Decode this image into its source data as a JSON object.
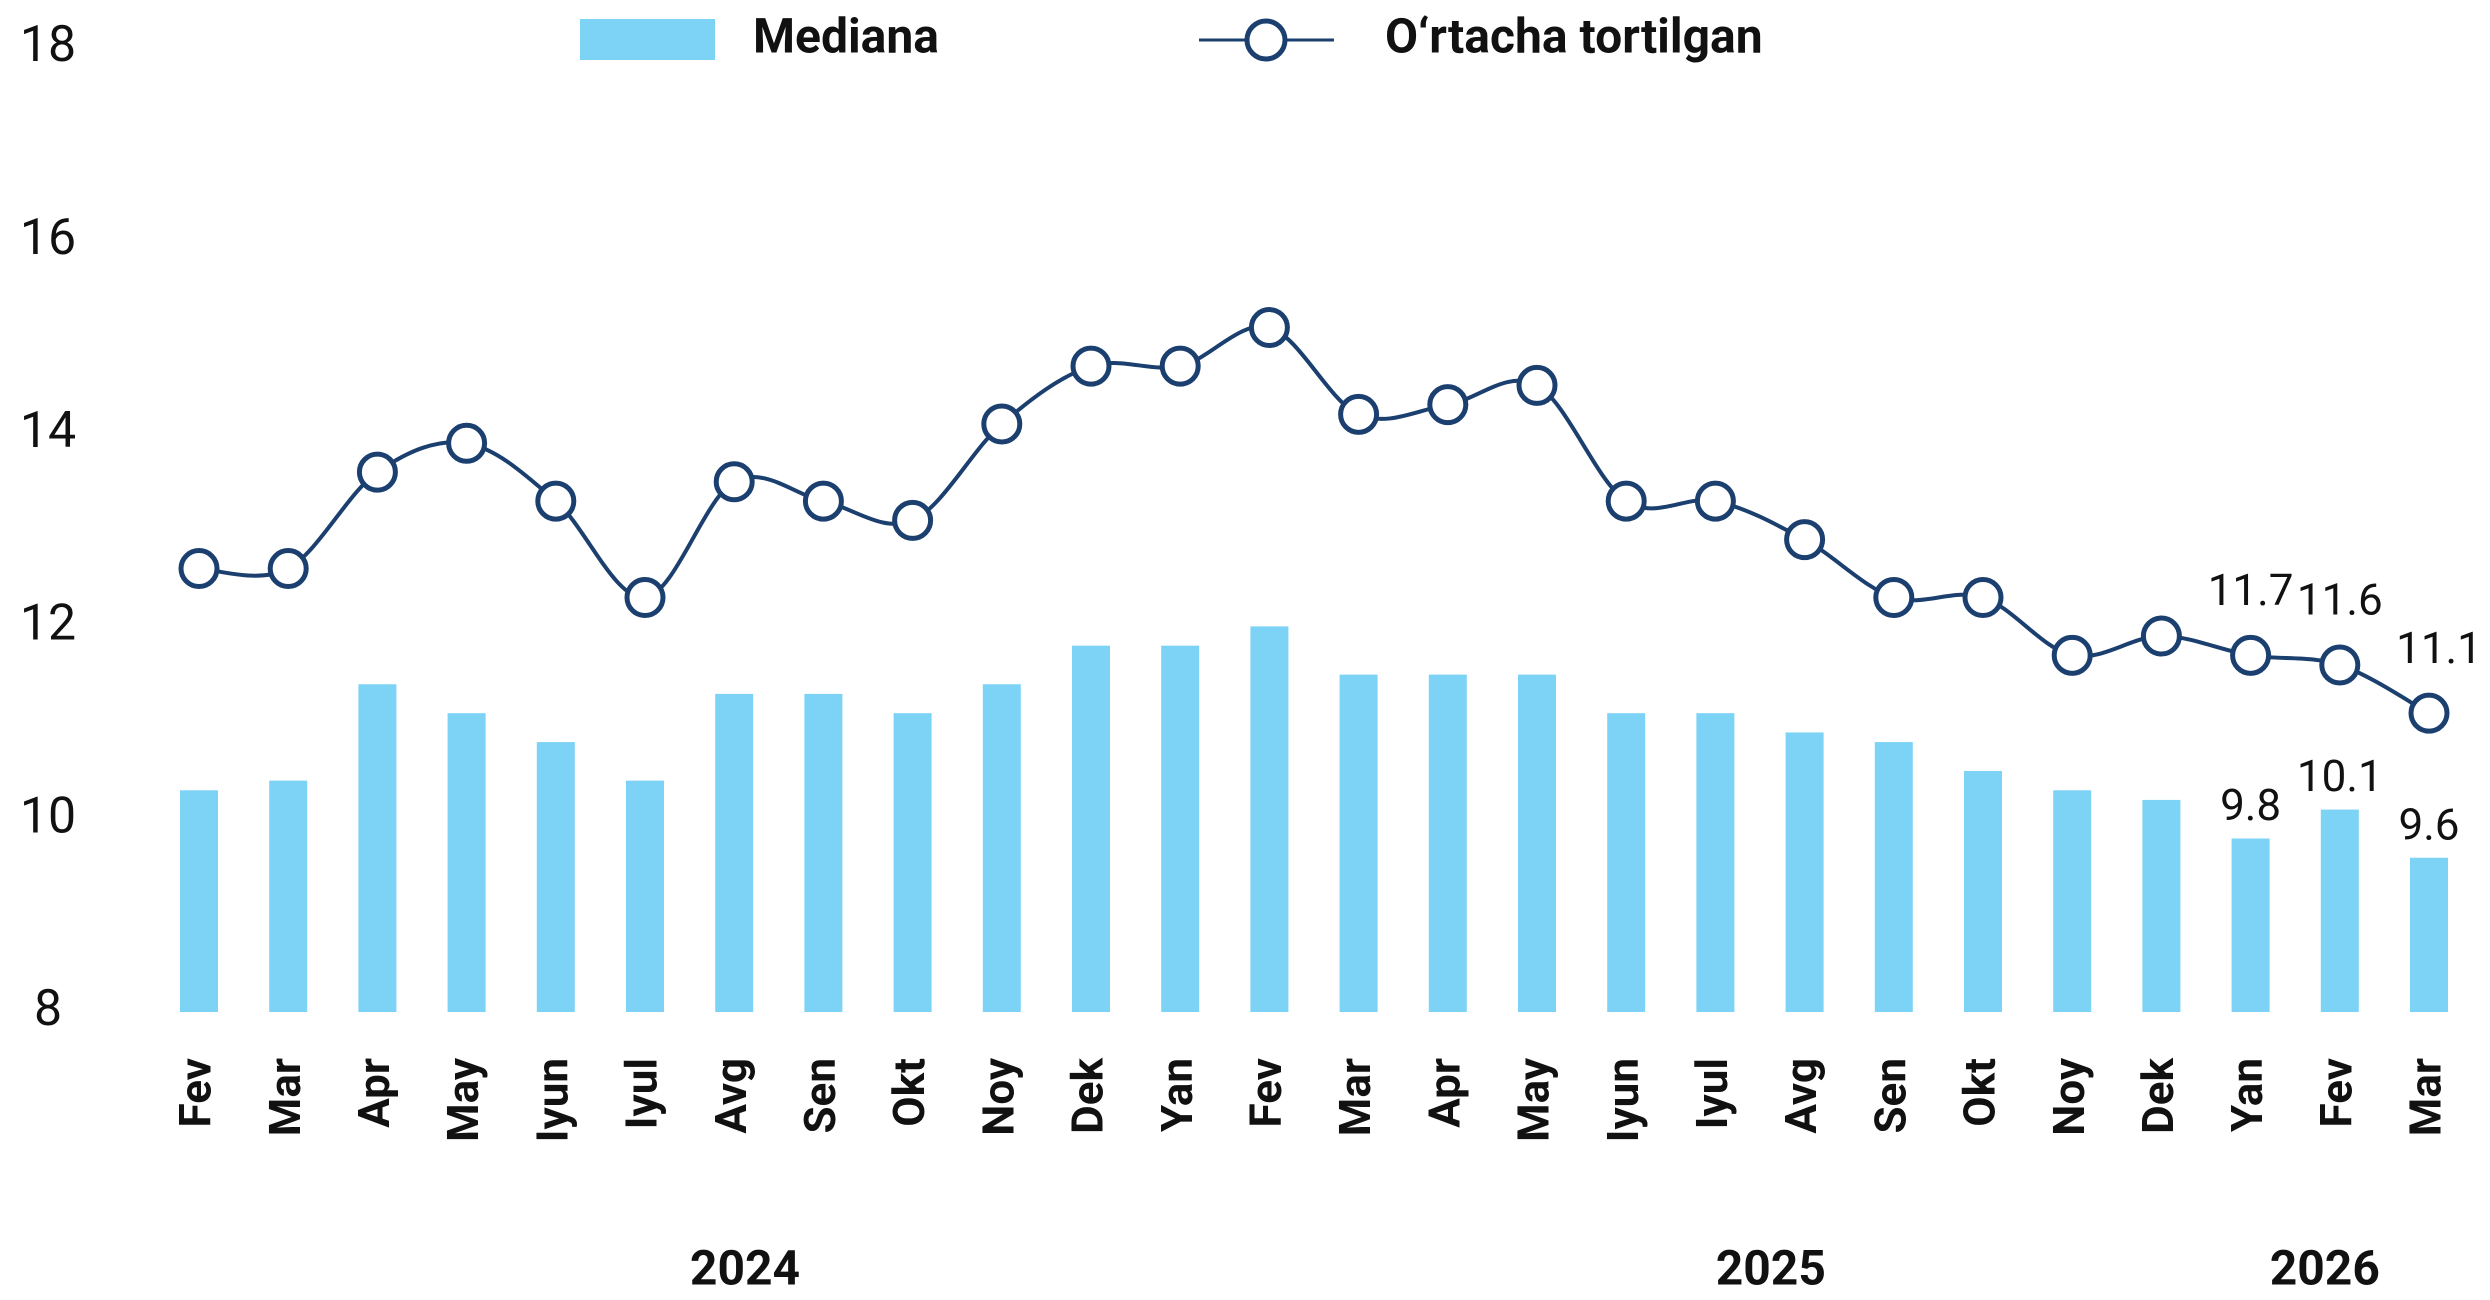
{
  "chart_data": {
    "type": "bar-line",
    "categories": [
      "Fev",
      "Mar",
      "Apr",
      "May",
      "Iyun",
      "Iyul",
      "Avg",
      "Sen",
      "Okt",
      "Noy",
      "Dek",
      "Yan",
      "Fev",
      "Mar",
      "Apr",
      "May",
      "Iyun",
      "Iyul",
      "Avg",
      "Sen",
      "Okt",
      "Noy",
      "Dek",
      "Yan",
      "Fev",
      "Mar"
    ],
    "year_groups": [
      {
        "label": "2024",
        "count": 11
      },
      {
        "label": "2025",
        "count": 12
      },
      {
        "label": "2026",
        "count": 3
      }
    ],
    "series": [
      {
        "name": "Mediana",
        "type": "bar",
        "color": "#7dd3f5",
        "values": [
          10.3,
          10.4,
          11.4,
          11.1,
          10.8,
          10.4,
          11.3,
          11.3,
          11.1,
          11.4,
          11.8,
          11.8,
          12.0,
          11.5,
          11.5,
          11.5,
          11.1,
          11.1,
          10.9,
          10.8,
          10.5,
          10.3,
          10.2,
          9.8,
          10.1,
          9.6
        ],
        "value_labels": [
          null,
          null,
          null,
          null,
          null,
          null,
          null,
          null,
          null,
          null,
          null,
          null,
          null,
          null,
          null,
          null,
          null,
          null,
          null,
          null,
          null,
          null,
          null,
          "9.8",
          "10.1",
          "9.6"
        ]
      },
      {
        "name": "O‘rtacha tortilgan",
        "type": "line",
        "color": "#1b3f6e",
        "values": [
          12.6,
          12.6,
          13.6,
          13.9,
          13.3,
          12.3,
          13.5,
          13.3,
          13.1,
          14.1,
          14.7,
          14.7,
          15.1,
          14.2,
          14.3,
          14.5,
          13.3,
          13.3,
          12.9,
          12.3,
          12.3,
          11.7,
          11.9,
          11.7,
          11.6,
          11.1
        ],
        "value_labels": [
          null,
          null,
          null,
          null,
          null,
          null,
          null,
          null,
          null,
          null,
          null,
          null,
          null,
          null,
          null,
          null,
          null,
          null,
          null,
          null,
          null,
          null,
          null,
          "11.7",
          "11.6",
          "11.1"
        ]
      }
    ],
    "ylim": [
      8,
      18
    ],
    "yticks": [
      8,
      10,
      12,
      14,
      16,
      18
    ],
    "grid": false,
    "legend": "top"
  }
}
